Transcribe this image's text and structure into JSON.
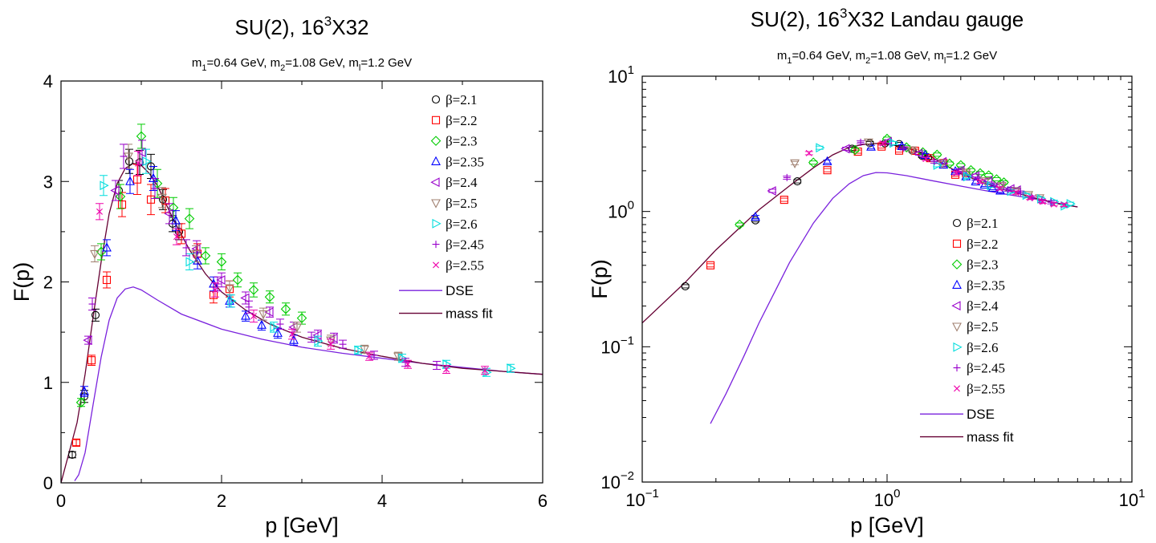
{
  "chart_data": [
    {
      "type": "scatter",
      "title": {
        "prefix": "SU(2), 16",
        "sup": "3",
        "suffix": "X32"
      },
      "subtitle": [
        {
          "base": "m",
          "sub": "1",
          "rest": "=0.64 GeV, "
        },
        {
          "base": "m",
          "sub": "2",
          "rest": "=1.08 GeV, "
        },
        {
          "base": "m",
          "sub": "l",
          "rest": "=1.2 GeV"
        }
      ],
      "xlabel": "p [GeV]",
      "ylabel": "F(p)",
      "xscale": "linear",
      "yscale": "linear",
      "xlim": [
        0,
        6
      ],
      "ylim": [
        0,
        4
      ],
      "xticks": [
        {
          "v": 0,
          "label": "0"
        },
        {
          "v": 2,
          "label": "2"
        },
        {
          "v": 4,
          "label": "4"
        },
        {
          "v": 6,
          "label": "6"
        }
      ],
      "yticks": [
        {
          "v": 0,
          "label": "0"
        },
        {
          "v": 1,
          "label": "1"
        },
        {
          "v": 2,
          "label": "2"
        },
        {
          "v": 3,
          "label": "3"
        },
        {
          "v": 4,
          "label": "4"
        }
      ],
      "grid": false,
      "legend_position": "top-right",
      "series": [
        {
          "name": "β=2.1",
          "marker": "circle",
          "color": "#000000",
          "x": [
            0.14,
            0.29,
            0.43,
            0.72,
            0.85,
            0.98,
            1.12,
            1.27,
            1.39,
            1.47
          ],
          "y": [
            0.28,
            0.86,
            1.67,
            2.91,
            3.2,
            3.19,
            3.15,
            2.82,
            2.58,
            2.5
          ],
          "err": [
            0.03,
            0.06,
            0.06,
            0.1,
            0.12,
            0.12,
            0.12,
            0.1,
            0.08,
            0.08
          ]
        },
        {
          "name": "β=2.2",
          "marker": "square",
          "color": "#ff0000",
          "x": [
            0.19,
            0.38,
            0.57,
            0.76,
            0.95,
            1.12,
            1.3,
            1.5,
            1.7,
            1.9,
            2.1
          ],
          "y": [
            0.4,
            1.22,
            2.02,
            2.77,
            3.02,
            2.82,
            2.81,
            2.48,
            2.28,
            1.87,
            1.93
          ],
          "err": [
            0.03,
            0.05,
            0.08,
            0.12,
            0.15,
            0.15,
            0.12,
            0.1,
            0.1,
            0.08,
            0.08
          ]
        },
        {
          "name": "β=2.3",
          "marker": "diamond",
          "color": "#00cc00",
          "x": [
            0.25,
            0.5,
            0.74,
            1.0,
            1.2,
            1.4,
            1.6,
            1.8,
            2.0,
            2.2,
            2.4,
            2.6,
            2.8,
            3.0
          ],
          "y": [
            0.8,
            2.3,
            2.85,
            3.45,
            2.98,
            2.74,
            2.63,
            2.26,
            2.2,
            2.02,
            1.92,
            1.85,
            1.73,
            1.64
          ],
          "err": [
            0.04,
            0.08,
            0.12,
            0.12,
            0.14,
            0.1,
            0.1,
            0.08,
            0.08,
            0.07,
            0.07,
            0.06,
            0.06,
            0.06
          ]
        },
        {
          "name": "β=2.35",
          "marker": "triangle-up",
          "color": "#0000ff",
          "x": [
            0.29,
            0.57,
            0.86,
            1.15,
            1.43,
            1.7,
            1.9,
            2.1,
            2.3,
            2.5,
            2.7,
            2.9
          ],
          "y": [
            0.91,
            2.34,
            3.0,
            3.03,
            2.61,
            2.21,
            1.98,
            1.81,
            1.66,
            1.57,
            1.49,
            1.42
          ],
          "err": [
            0.05,
            0.08,
            0.12,
            0.12,
            0.1,
            0.08,
            0.07,
            0.06,
            0.05,
            0.05,
            0.05,
            0.05
          ]
        },
        {
          "name": "β=2.4",
          "marker": "triangle-left",
          "color": "#9900cc",
          "x": [
            0.34,
            0.68,
            1.01,
            1.35,
            1.69,
            2.0,
            2.3,
            2.6,
            2.9,
            3.2,
            3.4
          ],
          "y": [
            1.42,
            2.91,
            3.29,
            2.68,
            2.33,
            2.02,
            1.84,
            1.7,
            1.55,
            1.47,
            1.44
          ],
          "err": [
            0.04,
            0.1,
            0.12,
            0.1,
            0.08,
            0.07,
            0.06,
            0.05,
            0.05,
            0.05,
            0.05
          ]
        },
        {
          "name": "β=2.5",
          "marker": "triangle-down",
          "color": "#a08070",
          "x": [
            0.42,
            0.84,
            1.26,
            1.68,
            2.1,
            2.52,
            2.94,
            3.36,
            3.78,
            4.2
          ],
          "y": [
            2.28,
            3.25,
            2.84,
            2.28,
            1.94,
            1.68,
            1.55,
            1.42,
            1.33,
            1.26
          ],
          "err": [
            0.08,
            0.12,
            0.1,
            0.08,
            0.07,
            0.06,
            0.05,
            0.05,
            0.04,
            0.04
          ]
        },
        {
          "name": "β=2.6",
          "marker": "triangle-right",
          "color": "#00dddd",
          "x": [
            0.53,
            1.06,
            1.6,
            2.12,
            2.65,
            3.2,
            3.7,
            4.25,
            4.8,
            5.3,
            5.6
          ],
          "y": [
            2.96,
            3.2,
            2.2,
            1.81,
            1.55,
            1.41,
            1.32,
            1.24,
            1.18,
            1.1,
            1.14
          ],
          "err": [
            0.1,
            0.12,
            0.08,
            0.06,
            0.05,
            0.05,
            0.04,
            0.04,
            0.04,
            0.04,
            0.04
          ]
        },
        {
          "name": "β=2.45",
          "marker": "plus",
          "color": "#9900cc",
          "x": [
            0.39,
            0.78,
            1.17,
            1.56,
            1.95,
            2.34,
            2.73,
            3.12,
            3.51,
            3.9,
            4.29,
            4.68
          ],
          "y": [
            1.78,
            3.25,
            2.93,
            2.34,
            1.98,
            1.75,
            1.58,
            1.45,
            1.38,
            1.27,
            1.2,
            1.17
          ],
          "err": [
            0.06,
            0.12,
            0.1,
            0.08,
            0.07,
            0.06,
            0.05,
            0.05,
            0.04,
            0.04,
            0.04,
            0.04
          ]
        },
        {
          "name": "β=2.55",
          "marker": "cross",
          "color": "#ee00aa",
          "x": [
            0.48,
            0.96,
            1.44,
            1.92,
            2.4,
            2.88,
            3.36,
            3.84,
            4.32,
            4.8,
            5.28
          ],
          "y": [
            2.7,
            3.18,
            2.45,
            1.92,
            1.66,
            1.48,
            1.38,
            1.26,
            1.18,
            1.13,
            1.12
          ],
          "err": [
            0.08,
            0.12,
            0.08,
            0.07,
            0.06,
            0.05,
            0.05,
            0.04,
            0.04,
            0.04,
            0.04
          ]
        }
      ],
      "curves": [
        {
          "name": "DSE",
          "color": "#7a22dd",
          "x": [
            0.17,
            0.22,
            0.3,
            0.4,
            0.5,
            0.6,
            0.7,
            0.8,
            0.9,
            1.0,
            1.2,
            1.5,
            2.0,
            2.5,
            3.0,
            3.5,
            4.0,
            4.5,
            5.0,
            5.5,
            6.0
          ],
          "y": [
            0.02,
            0.08,
            0.3,
            0.78,
            1.25,
            1.62,
            1.84,
            1.93,
            1.95,
            1.92,
            1.82,
            1.68,
            1.53,
            1.43,
            1.35,
            1.29,
            1.24,
            1.19,
            1.15,
            1.11,
            1.08
          ]
        },
        {
          "name": "mass fit",
          "color": "#660033",
          "x": [
            0.0,
            0.05,
            0.1,
            0.2,
            0.3,
            0.4,
            0.5,
            0.6,
            0.7,
            0.8,
            0.9,
            1.0,
            1.1,
            1.2,
            1.4,
            1.6,
            1.8,
            2.0,
            2.3,
            2.6,
            3.0,
            3.5,
            4.0,
            4.5,
            5.0,
            5.5,
            6.0
          ],
          "y": [
            0.0,
            0.15,
            0.3,
            0.6,
            1.08,
            1.65,
            2.2,
            2.68,
            2.98,
            3.13,
            3.18,
            3.16,
            3.08,
            2.96,
            2.62,
            2.32,
            2.08,
            1.9,
            1.72,
            1.58,
            1.45,
            1.34,
            1.26,
            1.19,
            1.14,
            1.11,
            1.08
          ]
        }
      ]
    },
    {
      "type": "scatter",
      "title": {
        "prefix": "SU(2), 16",
        "sup": "3",
        "suffix": "X32 Landau gauge"
      },
      "subtitle": [
        {
          "base": "m",
          "sub": "1",
          "rest": "=0.64 GeV, "
        },
        {
          "base": "m",
          "sub": "2",
          "rest": "=1.08 GeV, "
        },
        {
          "base": "m",
          "sub": "l",
          "rest": "=1.2 GeV"
        }
      ],
      "xlabel": "p [GeV]",
      "ylabel": "F(p)",
      "xscale": "log",
      "yscale": "log",
      "xlim": [
        0.1,
        10
      ],
      "ylim": [
        0.01,
        10
      ],
      "xticks": [
        {
          "v": 0.1,
          "base": "10",
          "exp": "−1"
        },
        {
          "v": 1,
          "base": "10",
          "exp": "0"
        },
        {
          "v": 10,
          "base": "10",
          "exp": "1"
        }
      ],
      "yticks": [
        {
          "v": 0.01,
          "base": "10",
          "exp": "−2"
        },
        {
          "v": 0.1,
          "base": "10",
          "exp": "−1"
        },
        {
          "v": 1,
          "base": "10",
          "exp": "0"
        },
        {
          "v": 10,
          "base": "10",
          "exp": "1"
        }
      ],
      "grid": false,
      "legend_position": "lower-right",
      "series": [
        {
          "name": "β=2.1",
          "marker": "circle",
          "color": "#000000",
          "x": [
            0.15,
            0.29,
            0.43,
            0.72,
            0.85,
            0.98,
            1.12,
            1.27,
            1.39,
            1.47
          ],
          "y": [
            0.28,
            0.86,
            1.67,
            2.91,
            3.2,
            3.19,
            3.15,
            2.82,
            2.58,
            2.5
          ]
        },
        {
          "name": "β=2.2",
          "marker": "square",
          "color": "#ff0000",
          "x": [
            0.19,
            0.38,
            0.57,
            0.76,
            0.95,
            1.12,
            1.3,
            1.5,
            1.7,
            1.9,
            2.1
          ],
          "y": [
            0.4,
            1.22,
            2.02,
            2.77,
            3.02,
            2.82,
            2.81,
            2.48,
            2.28,
            1.87,
            1.93
          ]
        },
        {
          "name": "β=2.3",
          "marker": "diamond",
          "color": "#00cc00",
          "x": [
            0.25,
            0.5,
            0.74,
            1.0,
            1.2,
            1.4,
            1.6,
            1.8,
            2.0,
            2.2,
            2.4,
            2.6,
            2.8,
            3.0
          ],
          "y": [
            0.8,
            2.3,
            2.85,
            3.45,
            2.98,
            2.74,
            2.63,
            2.26,
            2.2,
            2.02,
            1.92,
            1.85,
            1.73,
            1.64
          ]
        },
        {
          "name": "β=2.35",
          "marker": "triangle-up",
          "color": "#0000ff",
          "x": [
            0.29,
            0.57,
            0.86,
            1.15,
            1.43,
            1.7,
            1.9,
            2.1,
            2.3,
            2.5,
            2.7,
            2.9
          ],
          "y": [
            0.91,
            2.34,
            3.0,
            3.03,
            2.61,
            2.21,
            1.98,
            1.81,
            1.66,
            1.57,
            1.49,
            1.42
          ]
        },
        {
          "name": "β=2.4",
          "marker": "triangle-left",
          "color": "#9900cc",
          "x": [
            0.34,
            0.68,
            1.01,
            1.35,
            1.69,
            2.0,
            2.3,
            2.6,
            2.9,
            3.2,
            3.4
          ],
          "y": [
            1.42,
            2.91,
            3.29,
            2.68,
            2.33,
            2.02,
            1.84,
            1.7,
            1.55,
            1.47,
            1.44
          ]
        },
        {
          "name": "β=2.5",
          "marker": "triangle-down",
          "color": "#a08070",
          "x": [
            0.42,
            0.84,
            1.26,
            1.68,
            2.1,
            2.52,
            2.94,
            3.36,
            3.78,
            4.2
          ],
          "y": [
            2.28,
            3.25,
            2.84,
            2.28,
            1.94,
            1.68,
            1.55,
            1.42,
            1.33,
            1.26
          ]
        },
        {
          "name": "β=2.6",
          "marker": "triangle-right",
          "color": "#00dddd",
          "x": [
            0.53,
            1.06,
            1.6,
            2.12,
            2.65,
            3.2,
            3.7,
            4.25,
            4.8,
            5.3,
            5.6
          ],
          "y": [
            2.96,
            3.2,
            2.2,
            1.81,
            1.55,
            1.41,
            1.32,
            1.24,
            1.18,
            1.1,
            1.14
          ]
        },
        {
          "name": "β=2.45",
          "marker": "plus",
          "color": "#9900cc",
          "x": [
            0.39,
            0.78,
            1.17,
            1.56,
            1.95,
            2.34,
            2.73,
            3.12,
            3.51,
            3.9,
            4.29,
            4.68
          ],
          "y": [
            1.78,
            3.25,
            2.93,
            2.34,
            1.98,
            1.75,
            1.58,
            1.45,
            1.38,
            1.27,
            1.2,
            1.17
          ]
        },
        {
          "name": "β=2.55",
          "marker": "cross",
          "color": "#ee00aa",
          "x": [
            0.48,
            0.96,
            1.44,
            1.92,
            2.4,
            2.88,
            3.36,
            3.84,
            4.32,
            4.8,
            5.28
          ],
          "y": [
            2.7,
            3.18,
            2.45,
            1.92,
            1.66,
            1.48,
            1.38,
            1.26,
            1.18,
            1.13,
            1.12
          ]
        }
      ],
      "curves": [
        {
          "name": "DSE",
          "color": "#7a22dd",
          "x": [
            0.19,
            0.22,
            0.26,
            0.3,
            0.35,
            0.4,
            0.5,
            0.6,
            0.7,
            0.8,
            0.9,
            1.0,
            1.2,
            1.5,
            2.0,
            2.5,
            3.0,
            4.0,
            5.0,
            6.0
          ],
          "y": [
            0.027,
            0.045,
            0.085,
            0.15,
            0.26,
            0.42,
            0.82,
            1.25,
            1.6,
            1.84,
            1.94,
            1.93,
            1.84,
            1.7,
            1.54,
            1.43,
            1.35,
            1.24,
            1.15,
            1.08
          ]
        },
        {
          "name": "mass fit",
          "color": "#660033",
          "x": [
            0.1,
            0.15,
            0.2,
            0.3,
            0.4,
            0.5,
            0.6,
            0.7,
            0.8,
            0.9,
            1.0,
            1.2,
            1.5,
            2.0,
            2.5,
            3.0,
            4.0,
            5.0,
            6.0
          ],
          "y": [
            0.15,
            0.3,
            0.52,
            1.03,
            1.55,
            2.1,
            2.62,
            2.98,
            3.13,
            3.18,
            3.16,
            2.96,
            2.55,
            1.9,
            1.62,
            1.45,
            1.26,
            1.14,
            1.08
          ]
        }
      ]
    }
  ]
}
